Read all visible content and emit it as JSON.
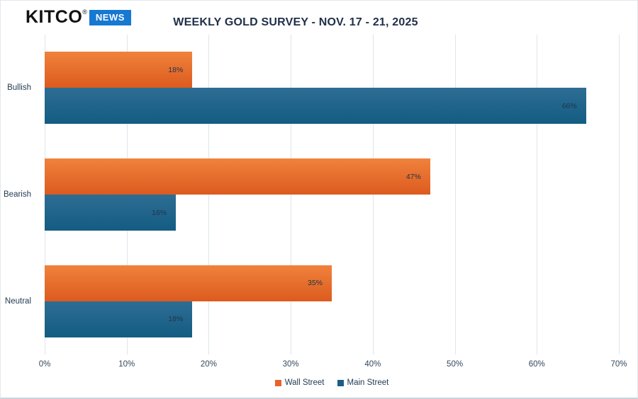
{
  "header": {
    "logo": {
      "brand": "KITCO",
      "registered": "®",
      "badge": "NEWS",
      "badge_color": "#1778d2"
    },
    "title": "WEEKLY GOLD SURVEY - NOV. 17 - 21, 2025"
  },
  "chart_data": {
    "type": "bar",
    "orientation": "horizontal",
    "title": "WEEKLY GOLD SURVEY - NOV. 17 - 21, 2025",
    "categories": [
      "Bullish",
      "Bearish",
      "Neutral"
    ],
    "series": [
      {
        "name": "Wall Street",
        "values": [
          18,
          47,
          35
        ],
        "color_top": "#f0823c",
        "color_bottom": "#dc5b1e",
        "legend_color": "#e8632c"
      },
      {
        "name": "Main Street",
        "values": [
          66,
          16,
          18
        ],
        "color_top": "#2e6d94",
        "color_bottom": "#135c82",
        "legend_color": "#1b5e84"
      }
    ],
    "value_suffix": "%",
    "x_ticks": [
      "0%",
      "10%",
      "20%",
      "30%",
      "40%",
      "50%",
      "60%",
      "70%"
    ],
    "xlim": [
      0,
      70
    ],
    "grid": true,
    "legend_position": "bottom",
    "colors": {
      "gridline": "#dfe5ea",
      "title_text": "#20304a",
      "axis_text": "#34485c",
      "data_label_text": "#203448"
    }
  }
}
